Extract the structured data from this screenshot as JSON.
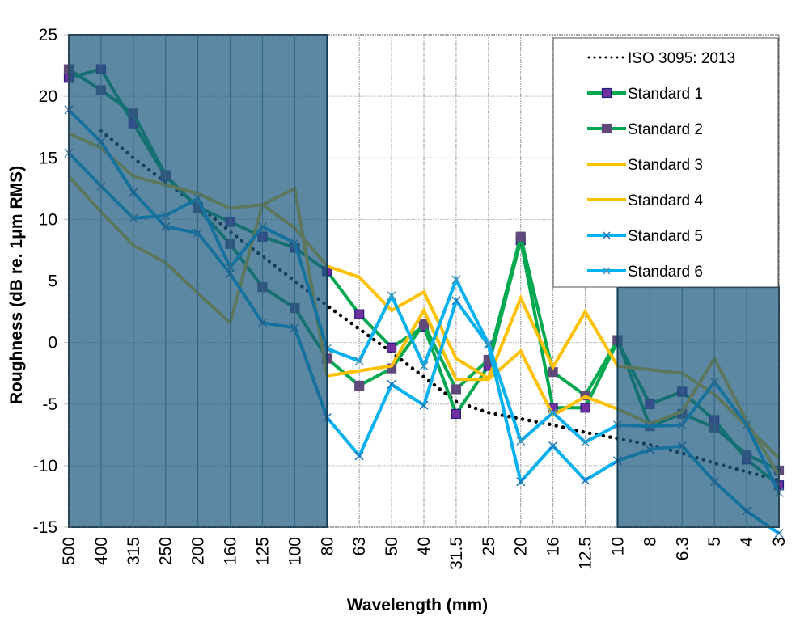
{
  "chart_data": {
    "type": "line",
    "title": "",
    "xlabel": "Wavelength (mm)",
    "ylabel": "Roughness (dB re. 1μm RMS)",
    "ylim": [
      -15,
      25
    ],
    "yticks": [
      25,
      20,
      15,
      10,
      5,
      0,
      -5,
      -10,
      -15
    ],
    "grid": true,
    "legend_position": "top-right",
    "categories": [
      "500",
      "400",
      "315",
      "250",
      "200",
      "160",
      "125",
      "100",
      "80",
      "63",
      "50",
      "40",
      "31.5",
      "25",
      "20",
      "16",
      "12.5",
      "10",
      "8",
      "6.3",
      "5",
      "4",
      "3"
    ],
    "shaded_regions": [
      {
        "from": "500",
        "to": "80",
        "ymin": -15,
        "ymax": 25,
        "color": "#1d5a80"
      },
      {
        "from": "10",
        "to": "3",
        "ymin": -15,
        "ymax": 4.5,
        "color": "#1d5a80"
      }
    ],
    "series": [
      {
        "name": "ISO 3095: 2013",
        "color": "#000000",
        "style": "dotted",
        "marker": "none",
        "values": [
          null,
          17.2,
          15.0,
          13.0,
          11.2,
          9.0,
          7.0,
          5.0,
          3.0,
          1.1,
          -0.8,
          -2.8,
          -4.8,
          -5.7,
          -6.2,
          -6.7,
          -7.3,
          -7.8,
          -8.3,
          -9.0,
          -9.8,
          -10.5,
          -11.2
        ]
      },
      {
        "name": "Standard 1",
        "color": "#00a84f",
        "style": "solid",
        "marker": "square",
        "marker_color": "#7030a0",
        "marker_border": "#1f1f7a",
        "values": [
          21.5,
          22.2,
          17.8,
          13.5,
          11.0,
          9.8,
          8.6,
          7.7,
          5.8,
          2.3,
          -0.4,
          1.3,
          -5.8,
          -1.9,
          8.3,
          -5.3,
          -5.3,
          0.1,
          -5.0,
          -4.0,
          -6.3,
          -9.5,
          -11.6
        ]
      },
      {
        "name": "Standard 2",
        "color": "#00a84f",
        "style": "solid",
        "marker": "square",
        "marker_color": "#604a7b",
        "marker_border": "#604a7b",
        "values": [
          22.2,
          20.5,
          18.6,
          13.6,
          10.9,
          8.0,
          4.5,
          2.8,
          -1.3,
          -3.5,
          -2.1,
          1.5,
          -3.8,
          -1.4,
          8.6,
          -2.4,
          -4.3,
          0.2,
          -6.8,
          -5.8,
          -6.9,
          -9.1,
          -10.4
        ]
      },
      {
        "name": "Standard 3",
        "color": "#ffc000",
        "style": "solid",
        "marker": "none",
        "values": [
          17.0,
          15.8,
          13.5,
          12.8,
          12.1,
          10.9,
          11.2,
          9.3,
          6.2,
          5.3,
          2.6,
          4.1,
          -1.3,
          -2.9,
          3.6,
          -2.0,
          2.5,
          -1.9,
          -2.2,
          -2.5,
          -4.2,
          -6.8,
          -9.4
        ]
      },
      {
        "name": "Standard 4",
        "color": "#ffc000",
        "style": "solid",
        "marker": "none",
        "values": [
          13.5,
          10.6,
          7.9,
          6.5,
          4.0,
          1.6,
          11.2,
          12.5,
          -2.7,
          -2.3,
          -1.9,
          2.6,
          -3.0,
          -3.0,
          -0.7,
          -5.9,
          -4.4,
          -5.4,
          -6.6,
          -5.6,
          -1.3,
          -6.4,
          -10.8
        ]
      },
      {
        "name": "Standard 5",
        "color": "#00b0f0",
        "style": "solid",
        "marker": "x",
        "marker_color": "#1f6fb5",
        "values": [
          18.9,
          16.3,
          12.2,
          9.4,
          8.9,
          5.6,
          1.6,
          1.2,
          -6.1,
          -9.2,
          -3.4,
          -5.1,
          3.4,
          -0.2,
          -11.3,
          -8.4,
          -11.2,
          -9.6,
          -8.7,
          -8.4,
          -11.3,
          -13.7,
          -15.5
        ]
      },
      {
        "name": "Standard 6",
        "color": "#00b0f0",
        "style": "solid",
        "marker": "x",
        "marker_color": "#4a8fb0",
        "values": [
          15.4,
          12.7,
          10.1,
          10.3,
          11.7,
          6.1,
          9.4,
          8.1,
          -0.5,
          -1.5,
          3.8,
          -1.9,
          5.1,
          -0.1,
          -8.0,
          -5.7,
          -8.1,
          -6.7,
          -6.8,
          -6.7,
          -3.2,
          -6.7,
          -12.2
        ]
      }
    ]
  }
}
